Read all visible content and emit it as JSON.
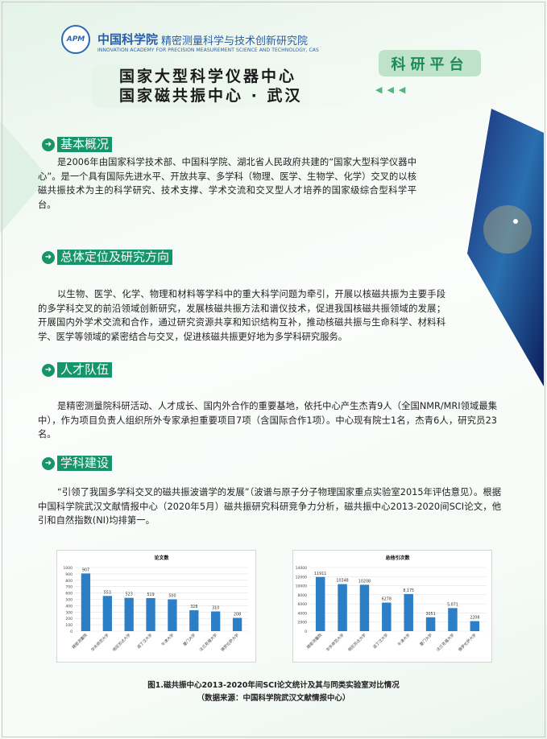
{
  "header": {
    "logo_text": "APM",
    "cas_name": "中国科学院",
    "institute": "精密测量科学与技术创新研究院",
    "english": "INNOVATION ACADEMY FOR PRECISION MEASUREMENT SCIENCE AND TECHNOLOGY, CAS",
    "title_line1": "国家大型科学仪器中心",
    "title_line2": "国家磁共振中心 · 武汉",
    "badge": "科研平台",
    "arrows": "◀◀◀"
  },
  "sections": [
    {
      "heading": "基本概况",
      "text": "是2006年由国家科学技术部、中国科学院、湖北省人民政府共建的“国家大型科学仪器中心”。是一个具有国际先进水平、开放共享、多学科（物理、医学、生物学、化学）交叉的以核磁共振技术为主的科学研究、技术支撑、学术交流和交叉型人才培养的国家级综合型科学平台。"
    },
    {
      "heading": "总体定位及研究方向",
      "text": "以生物、医学、化学、物理和材料等学科中的重大科学问题为牵引，开展以核磁共振为主要手段的多学科交叉的前沿领域创新研究，发展核磁共振方法和谱仪技术，促进我国核磁共振领域的发展；开展国内外学术交流和合作，通过研究资源共享和知识结构互补，推动核磁共振与生命科学、材料科学、医学等领域的紧密结合与交叉，促进核磁共振更好地为多学科研究服务。"
    },
    {
      "heading": "人才队伍",
      "text": "是精密测量院科研活动、人才成长、国内外合作的重要基地，依托中心产生杰青9人（全国NMR/MRI领域最集中），作为项目负责人组织所外专家承担重要项目7项（含国际合作1项）。中心现有院士1名，杰青6人，研究员23名。"
    },
    {
      "heading": "学科建设",
      "text": "“引领了我国多学科交叉的磁共振波谱学的发展”（波谱与原子分子物理国家重点实验室2015年评估意见）。根据中国科学院武汉文献情报中心（2020年5月）磁共振研究科研竞争力分析，磁共振中心2013-2020间SCI论文，他引和自然指数(NI)均排第一。"
    }
  ],
  "chart_data": [
    {
      "type": "bar",
      "title": "论文数",
      "categories": [
        "精密测量院",
        "华东师范大学",
        "明尼苏达大学",
        "诺丁汉大学",
        "牛津大学",
        "厦门大学",
        "法兰克福大学",
        "佛罗伦萨大学"
      ],
      "values": [
        907,
        553,
        523,
        519,
        500,
        328,
        310,
        208
      ],
      "labels": [
        "907",
        "553",
        "523",
        "519",
        "500",
        "328",
        "310",
        "208"
      ],
      "ylim": [
        0,
        1000
      ],
      "yticks": [
        0,
        100,
        200,
        300,
        400,
        500,
        600,
        700,
        800,
        900,
        1000
      ],
      "grid": true,
      "color": "#2a7fc6"
    },
    {
      "type": "bar",
      "title": "总他引次数",
      "categories": [
        "精密测量院",
        "华东师范大学",
        "明尼苏达大学",
        "诺丁汉大学",
        "牛津大学",
        "厦门大学",
        "法兰克福大学",
        "佛罗伦萨大学"
      ],
      "values": [
        11911,
        10348,
        10208,
        6278,
        8175,
        3051,
        5071,
        2208
      ],
      "labels": [
        "11911",
        "10348",
        "10208",
        "6278",
        "8,175",
        "3051",
        "5,071",
        "2208"
      ],
      "ylim": [
        0,
        14000
      ],
      "yticks": [
        0,
        2000,
        4000,
        6000,
        8000,
        10000,
        12000,
        14000
      ],
      "grid": true,
      "color": "#2a7fc6"
    }
  ],
  "caption": {
    "line1": "图1.磁共振中心2013-2020年间SCI论文统计及其与同类实验室对比情况",
    "line2": "（数据来源：中国科学院武汉文献情报中心）"
  }
}
